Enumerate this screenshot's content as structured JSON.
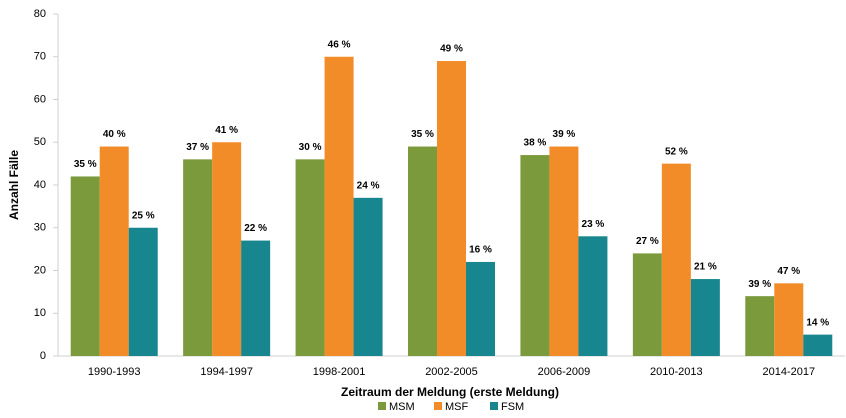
{
  "chart_data": {
    "type": "bar",
    "categories": [
      "1990-1993",
      "1994-1997",
      "1998-2001",
      "2002-2005",
      "2006-2009",
      "2010-2013",
      "2014-2017"
    ],
    "series": [
      {
        "name": "MSM",
        "color": "#7a9a3c",
        "values": [
          42,
          46,
          46,
          49,
          47,
          24,
          14
        ],
        "value_labels": [
          "35 %",
          "37 %",
          "30 %",
          "35 %",
          "38 %",
          "27 %",
          "39 %"
        ]
      },
      {
        "name": "MSF",
        "color": "#f28c28",
        "values": [
          49,
          50,
          70,
          69,
          49,
          45,
          17
        ],
        "value_labels": [
          "40 %",
          "41 %",
          "46 %",
          "49 %",
          "39 %",
          "52 %",
          "47 %"
        ]
      },
      {
        "name": "FSM",
        "color": "#17868e",
        "values": [
          30,
          27,
          37,
          22,
          28,
          18,
          5
        ],
        "value_labels": [
          "25 %",
          "22 %",
          "24 %",
          "16 %",
          "23 %",
          "21 %",
          "14 %"
        ]
      }
    ],
    "xlabel": "Zeitraum der Meldung (erste Meldung)",
    "ylabel": "Anzahl Fälle",
    "ylim": [
      0,
      80
    ],
    "yticks": [
      0,
      10,
      20,
      30,
      40,
      50,
      60,
      70,
      80
    ],
    "grid": false,
    "legend": "bottom"
  }
}
